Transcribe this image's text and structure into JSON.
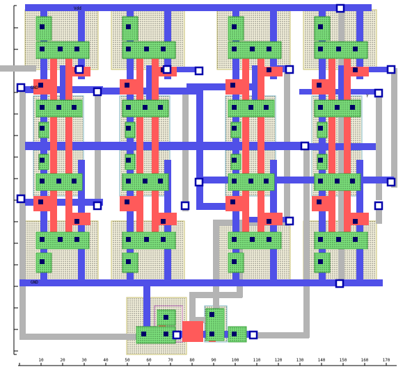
{
  "layout_view": {
    "x_axis_ticks": [
      "10",
      "20",
      "30",
      "40",
      "50",
      "60",
      "70",
      "80",
      "90",
      "100",
      "110",
      "120",
      "130",
      "140",
      "150",
      "160",
      "170"
    ],
    "net_labels": {
      "vdd": "Vdd",
      "gnd": "GND",
      "out": "Y"
    },
    "colors": {
      "metal1": "#4f4fe6",
      "metal2": "#b4b4b4",
      "poly": "#ff5a5a",
      "active": "#64dc64",
      "nwell": "#e8e4c0",
      "contact": "#000066",
      "pin": "#0000aa"
    }
  }
}
